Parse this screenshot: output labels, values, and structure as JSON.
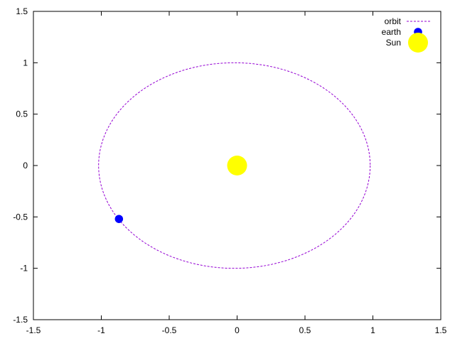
{
  "chart_data": {
    "type": "scatter",
    "title": "",
    "xlabel": "",
    "ylabel": "",
    "xlim": [
      -1.5,
      1.5
    ],
    "ylim": [
      -1.5,
      1.5
    ],
    "grid": false,
    "legend_position": "top-right",
    "x_ticks": [
      -1.5,
      -1,
      -0.5,
      0,
      0.5,
      1,
      1.5
    ],
    "y_ticks": [
      -1.5,
      -1,
      -0.5,
      0,
      0.5,
      1,
      1.5
    ],
    "x_tick_labels": [
      "-1.5",
      "-1",
      "-0.5",
      "0",
      "0.5",
      "1",
      "1.5"
    ],
    "y_tick_labels": [
      "-1.5",
      "-1",
      "-0.5",
      "0",
      "0.5",
      "1",
      "1.5"
    ],
    "series": [
      {
        "name": "orbit",
        "kind": "line",
        "style": "dashed",
        "color": "#9400D3",
        "shape": "ellipse",
        "center": [
          -0.02,
          0.0
        ],
        "semi_axes": [
          1.0,
          1.0
        ]
      },
      {
        "name": "earth",
        "kind": "point",
        "color": "#0000FF",
        "x": [
          -0.87
        ],
        "y": [
          -0.52
        ]
      },
      {
        "name": "Sun",
        "kind": "point",
        "color": "#FFFF00",
        "x": [
          0.0
        ],
        "y": [
          0.0
        ]
      }
    ]
  }
}
